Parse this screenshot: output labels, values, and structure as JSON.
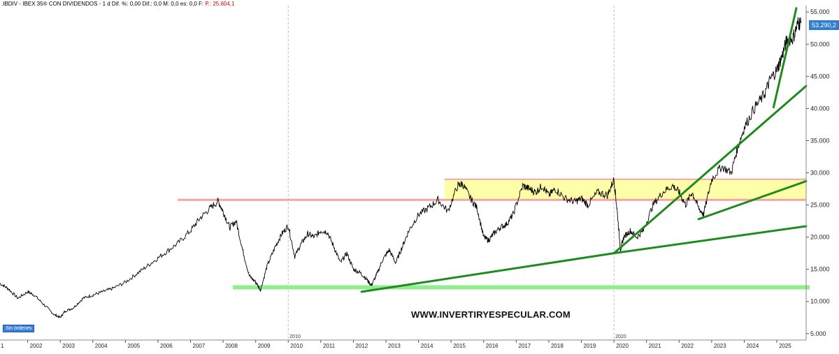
{
  "header": {
    "text": ".IBDIV - IBEX 35® CON DIVIDENDOS - 1 d  Dif. %: 0,00  Dif.: 0,0  M: 0,0  es: 0,0  F:",
    "p_label": "P.: 25.604,1"
  },
  "badge": "Sin órdenes",
  "watermark": "WWW.INVERTIRYESPECULAR.COM",
  "last_price": "53.290,2",
  "colors": {
    "price": "#000000",
    "trend": "#1e8b1e",
    "support_band": "#90ee90",
    "resistance_line": "#f4a6a6",
    "zone_fill": "#ffff99",
    "grid": "#dddddd",
    "last_badge": "#2f7fd1"
  },
  "chart_data": {
    "type": "line",
    "title": ".IBDIV - IBEX 35® CON DIVIDENDOS",
    "x_start_label": "1",
    "x_ticks": [
      2002,
      2003,
      2004,
      2005,
      2006,
      2007,
      2008,
      2009,
      2010,
      2011,
      2012,
      2013,
      2014,
      2015,
      2016,
      2017,
      2018,
      2019,
      2020,
      2021,
      2022,
      2023,
      2024,
      2025
    ],
    "x_tick_labels": [
      "2002",
      "2003",
      "2004",
      "2005",
      "2006",
      "2007",
      "2008",
      "2009",
      "2010",
      "2011",
      "2012",
      "2013",
      "2014",
      "2015",
      "2016",
      "2017",
      "2018",
      "2019",
      "2020",
      "2021",
      "2022",
      "2023",
      "2024",
      "2025"
    ],
    "y_ticks": [
      5000,
      10000,
      15000,
      20000,
      25000,
      30000,
      35000,
      40000,
      45000,
      50000,
      55000
    ],
    "y_tick_labels": [
      "5.000",
      "10.000",
      "15.000",
      "20.000",
      "25.000",
      "30.000",
      "35.000",
      "40.000",
      "45.000",
      "50.000",
      "55.000"
    ],
    "ylim": [
      4000,
      56000
    ],
    "xlim": [
      2001.15,
      2025.9
    ],
    "vertical_markers": [
      {
        "x": 2010.0,
        "label": "2010"
      },
      {
        "x": 2020.0,
        "label": "2020"
      }
    ],
    "series": [
      {
        "x": [
          2001.15,
          2001.4,
          2001.7,
          2002.0,
          2002.2,
          2002.5,
          2002.8,
          2003.0,
          2003.15,
          2003.4,
          2003.7,
          2004.0,
          2004.3,
          2004.6,
          2005.0,
          2005.4,
          2005.8,
          2006.2,
          2006.6,
          2007.0,
          2007.3,
          2007.6,
          2007.85,
          2008.0,
          2008.2,
          2008.4,
          2008.6,
          2008.8,
          2009.0,
          2009.15,
          2009.35,
          2009.6,
          2009.8,
          2010.0,
          2010.2,
          2010.4,
          2010.6,
          2010.8,
          2011.0,
          2011.2,
          2011.4,
          2011.6,
          2011.8,
          2012.0,
          2012.2,
          2012.4,
          2012.55,
          2012.7,
          2012.9,
          2013.1,
          2013.3,
          2013.5,
          2013.7,
          2014.0,
          2014.3,
          2014.6,
          2014.9,
          2015.2,
          2015.35,
          2015.6,
          2015.8,
          2016.0,
          2016.15,
          2016.3,
          2016.5,
          2016.7,
          2016.9,
          2017.2,
          2017.4,
          2017.6,
          2017.8,
          2018.0,
          2018.2,
          2018.5,
          2018.8,
          2019.0,
          2019.2,
          2019.5,
          2019.8,
          2020.0,
          2020.1,
          2020.2,
          2020.3,
          2020.5,
          2020.7,
          2020.9,
          2021.2,
          2021.5,
          2021.8,
          2022.0,
          2022.2,
          2022.4,
          2022.6,
          2022.75,
          2023.0,
          2023.3,
          2023.6,
          2023.8,
          2024.0,
          2024.3,
          2024.6,
          2024.8,
          2025.0,
          2025.15,
          2025.3,
          2025.5,
          2025.65,
          2025.75
        ],
        "y": [
          12800,
          12000,
          10500,
          11500,
          11000,
          9500,
          8000,
          7500,
          8500,
          9000,
          10500,
          11000,
          11500,
          12000,
          13000,
          14500,
          16000,
          17500,
          19000,
          21000,
          23000,
          24500,
          25600,
          24000,
          21500,
          22500,
          18000,
          14000,
          13000,
          11800,
          15500,
          18500,
          20500,
          21800,
          17000,
          19000,
          20500,
          20000,
          21000,
          20800,
          18500,
          16000,
          17500,
          15000,
          14500,
          13500,
          12500,
          14000,
          16500,
          18000,
          16000,
          18500,
          21000,
          23500,
          24500,
          25800,
          24000,
          28000,
          28300,
          26000,
          24500,
          20000,
          19500,
          20500,
          21500,
          22000,
          23500,
          28000,
          27500,
          27000,
          28000,
          26500,
          27500,
          26000,
          25500,
          26000,
          25000,
          27000,
          26500,
          29000,
          24000,
          18000,
          20000,
          21000,
          20000,
          21000,
          25000,
          27000,
          28000,
          27000,
          25000,
          27000,
          24500,
          23500,
          29000,
          31000,
          30000,
          34000,
          37000,
          40000,
          42000,
          44500,
          46000,
          48000,
          50500,
          51000,
          53290,
          53290
        ]
      }
    ],
    "horizontal_levels": [
      {
        "role": "support band",
        "y": 12200
      },
      {
        "role": "resistance line",
        "y": 25800
      },
      {
        "role": "zone top",
        "y": 29000
      }
    ],
    "trendlines": [
      {
        "x1": 2012.25,
        "y1": 11500,
        "x2": 2020.0,
        "y2": 17500
      },
      {
        "x1": 2020.0,
        "y1": 17500,
        "x2": 2025.9,
        "y2": 21700
      },
      {
        "x1": 2020.0,
        "y1": 17500,
        "x2": 2025.9,
        "y2": 43500
      },
      {
        "x1": 2022.6,
        "y1": 22800,
        "x2": 2025.9,
        "y2": 28700
      },
      {
        "x1": 2024.9,
        "y1": 40200,
        "x2": 2025.6,
        "y2": 55600
      }
    ],
    "grid": true,
    "legend": "none"
  }
}
